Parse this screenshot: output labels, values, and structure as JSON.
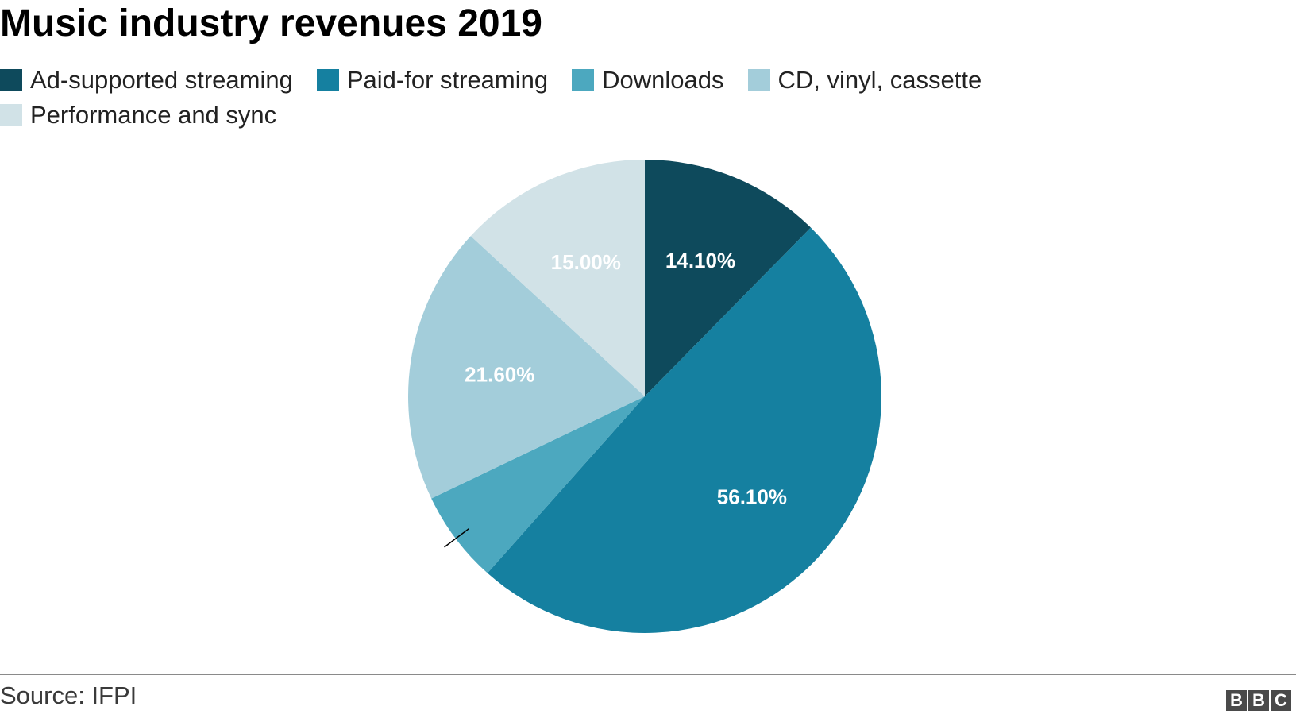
{
  "chart_data": {
    "type": "pie",
    "title": "Music industry revenues 2019",
    "categories": [
      "Ad-supported streaming",
      "Paid-for streaming",
      "Downloads",
      "CD, vinyl, cassette",
      "Performance and sync"
    ],
    "values": [
      14.1,
      56.1,
      7.2,
      21.6,
      15.0
    ],
    "labels": [
      "14.10%",
      "56.10%",
      "",
      "21.60%",
      "15.00%"
    ],
    "colors": [
      "#0e4a5c",
      "#1580a0",
      "#4ca8bf",
      "#a3cdda",
      "#d1e2e7"
    ],
    "legend_position": "top-left",
    "source": "Source: IFPI"
  },
  "footer": {
    "source": "Source: IFPI",
    "logo_letters": [
      "B",
      "B",
      "C"
    ]
  }
}
